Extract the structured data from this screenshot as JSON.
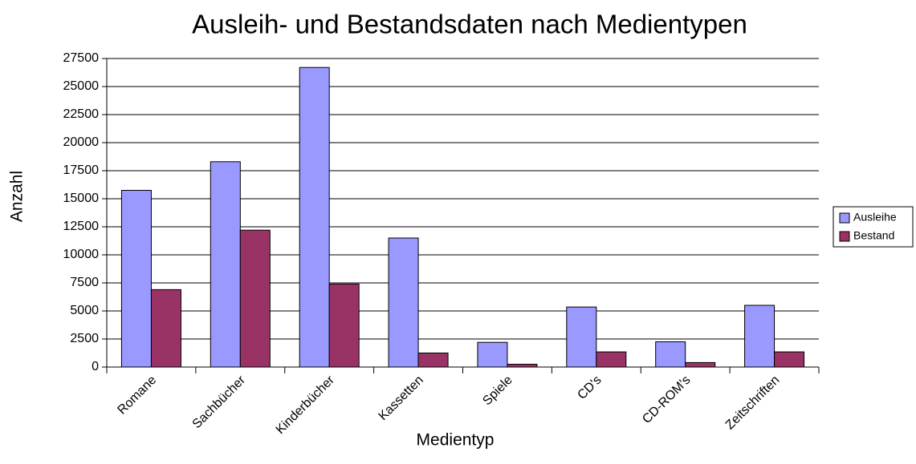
{
  "chart_data": {
    "type": "bar",
    "title": "Ausleih- und Bestandsdaten nach Medientypen",
    "x_label": "Medientyp",
    "y_label": "Anzahl",
    "categories": [
      "Romane",
      "Sachbücher",
      "Kinderbücher",
      "Kassetten",
      "Spiele",
      "CD's",
      "CD-ROM's",
      "Zeitschriften"
    ],
    "series": [
      {
        "name": "Ausleihe",
        "color": "#9999ff",
        "values": [
          15750,
          18300,
          26700,
          11500,
          2200,
          5350,
          2250,
          5500
        ]
      },
      {
        "name": "Bestand",
        "color": "#993366",
        "values": [
          6900,
          12200,
          7400,
          1250,
          250,
          1350,
          400,
          1350
        ]
      }
    ],
    "ylim": [
      0,
      27500
    ],
    "yticks": [
      0,
      2500,
      5000,
      7500,
      10000,
      12500,
      15000,
      17500,
      20000,
      22500,
      25000,
      27500
    ],
    "grid": true,
    "legend": "right"
  }
}
